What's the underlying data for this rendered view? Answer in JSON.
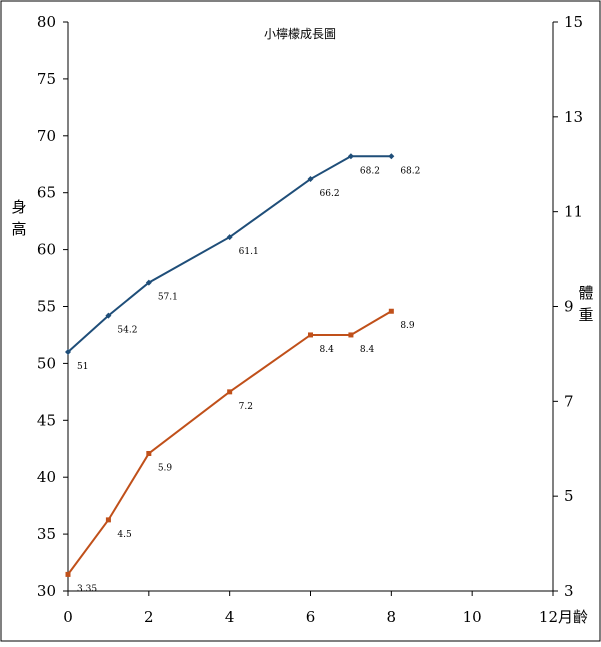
{
  "chart_data": {
    "type": "line",
    "title": "小檸檬成長圖",
    "x": [
      0,
      1,
      2,
      4,
      6,
      7,
      8
    ],
    "x_ticks": [
      "0",
      "2",
      "4",
      "6",
      "8",
      "10",
      "12"
    ],
    "xlim": [
      0,
      12
    ],
    "xlabel": "月齡",
    "ylabel_left": "身高",
    "ylabel_right": "體重",
    "ylim_left": [
      30,
      80
    ],
    "ylim_right": [
      3,
      15
    ],
    "y_ticks_left": [
      "30",
      "35",
      "40",
      "45",
      "50",
      "55",
      "60",
      "65",
      "70",
      "75",
      "80"
    ],
    "y_ticks_right": [
      "3",
      "5",
      "7",
      "9",
      "11",
      "13",
      "15"
    ],
    "grid": false,
    "legend": "none",
    "series": [
      {
        "axis": "left",
        "color": "#1f4e79",
        "values": [
          51,
          54.2,
          57.1,
          61.1,
          66.2,
          68.2,
          68.2
        ],
        "labels": [
          "51",
          "54.2",
          "57.1",
          "61.1",
          "66.2",
          "68.2",
          "68.2"
        ]
      },
      {
        "axis": "right",
        "color": "#c0501a",
        "values": [
          3.35,
          4.5,
          5.9,
          7.2,
          8.4,
          8.4,
          8.9
        ],
        "labels": [
          "3.35",
          "4.5",
          "5.9",
          "7.2",
          "8.4",
          "8.4",
          "8.9"
        ]
      }
    ]
  }
}
